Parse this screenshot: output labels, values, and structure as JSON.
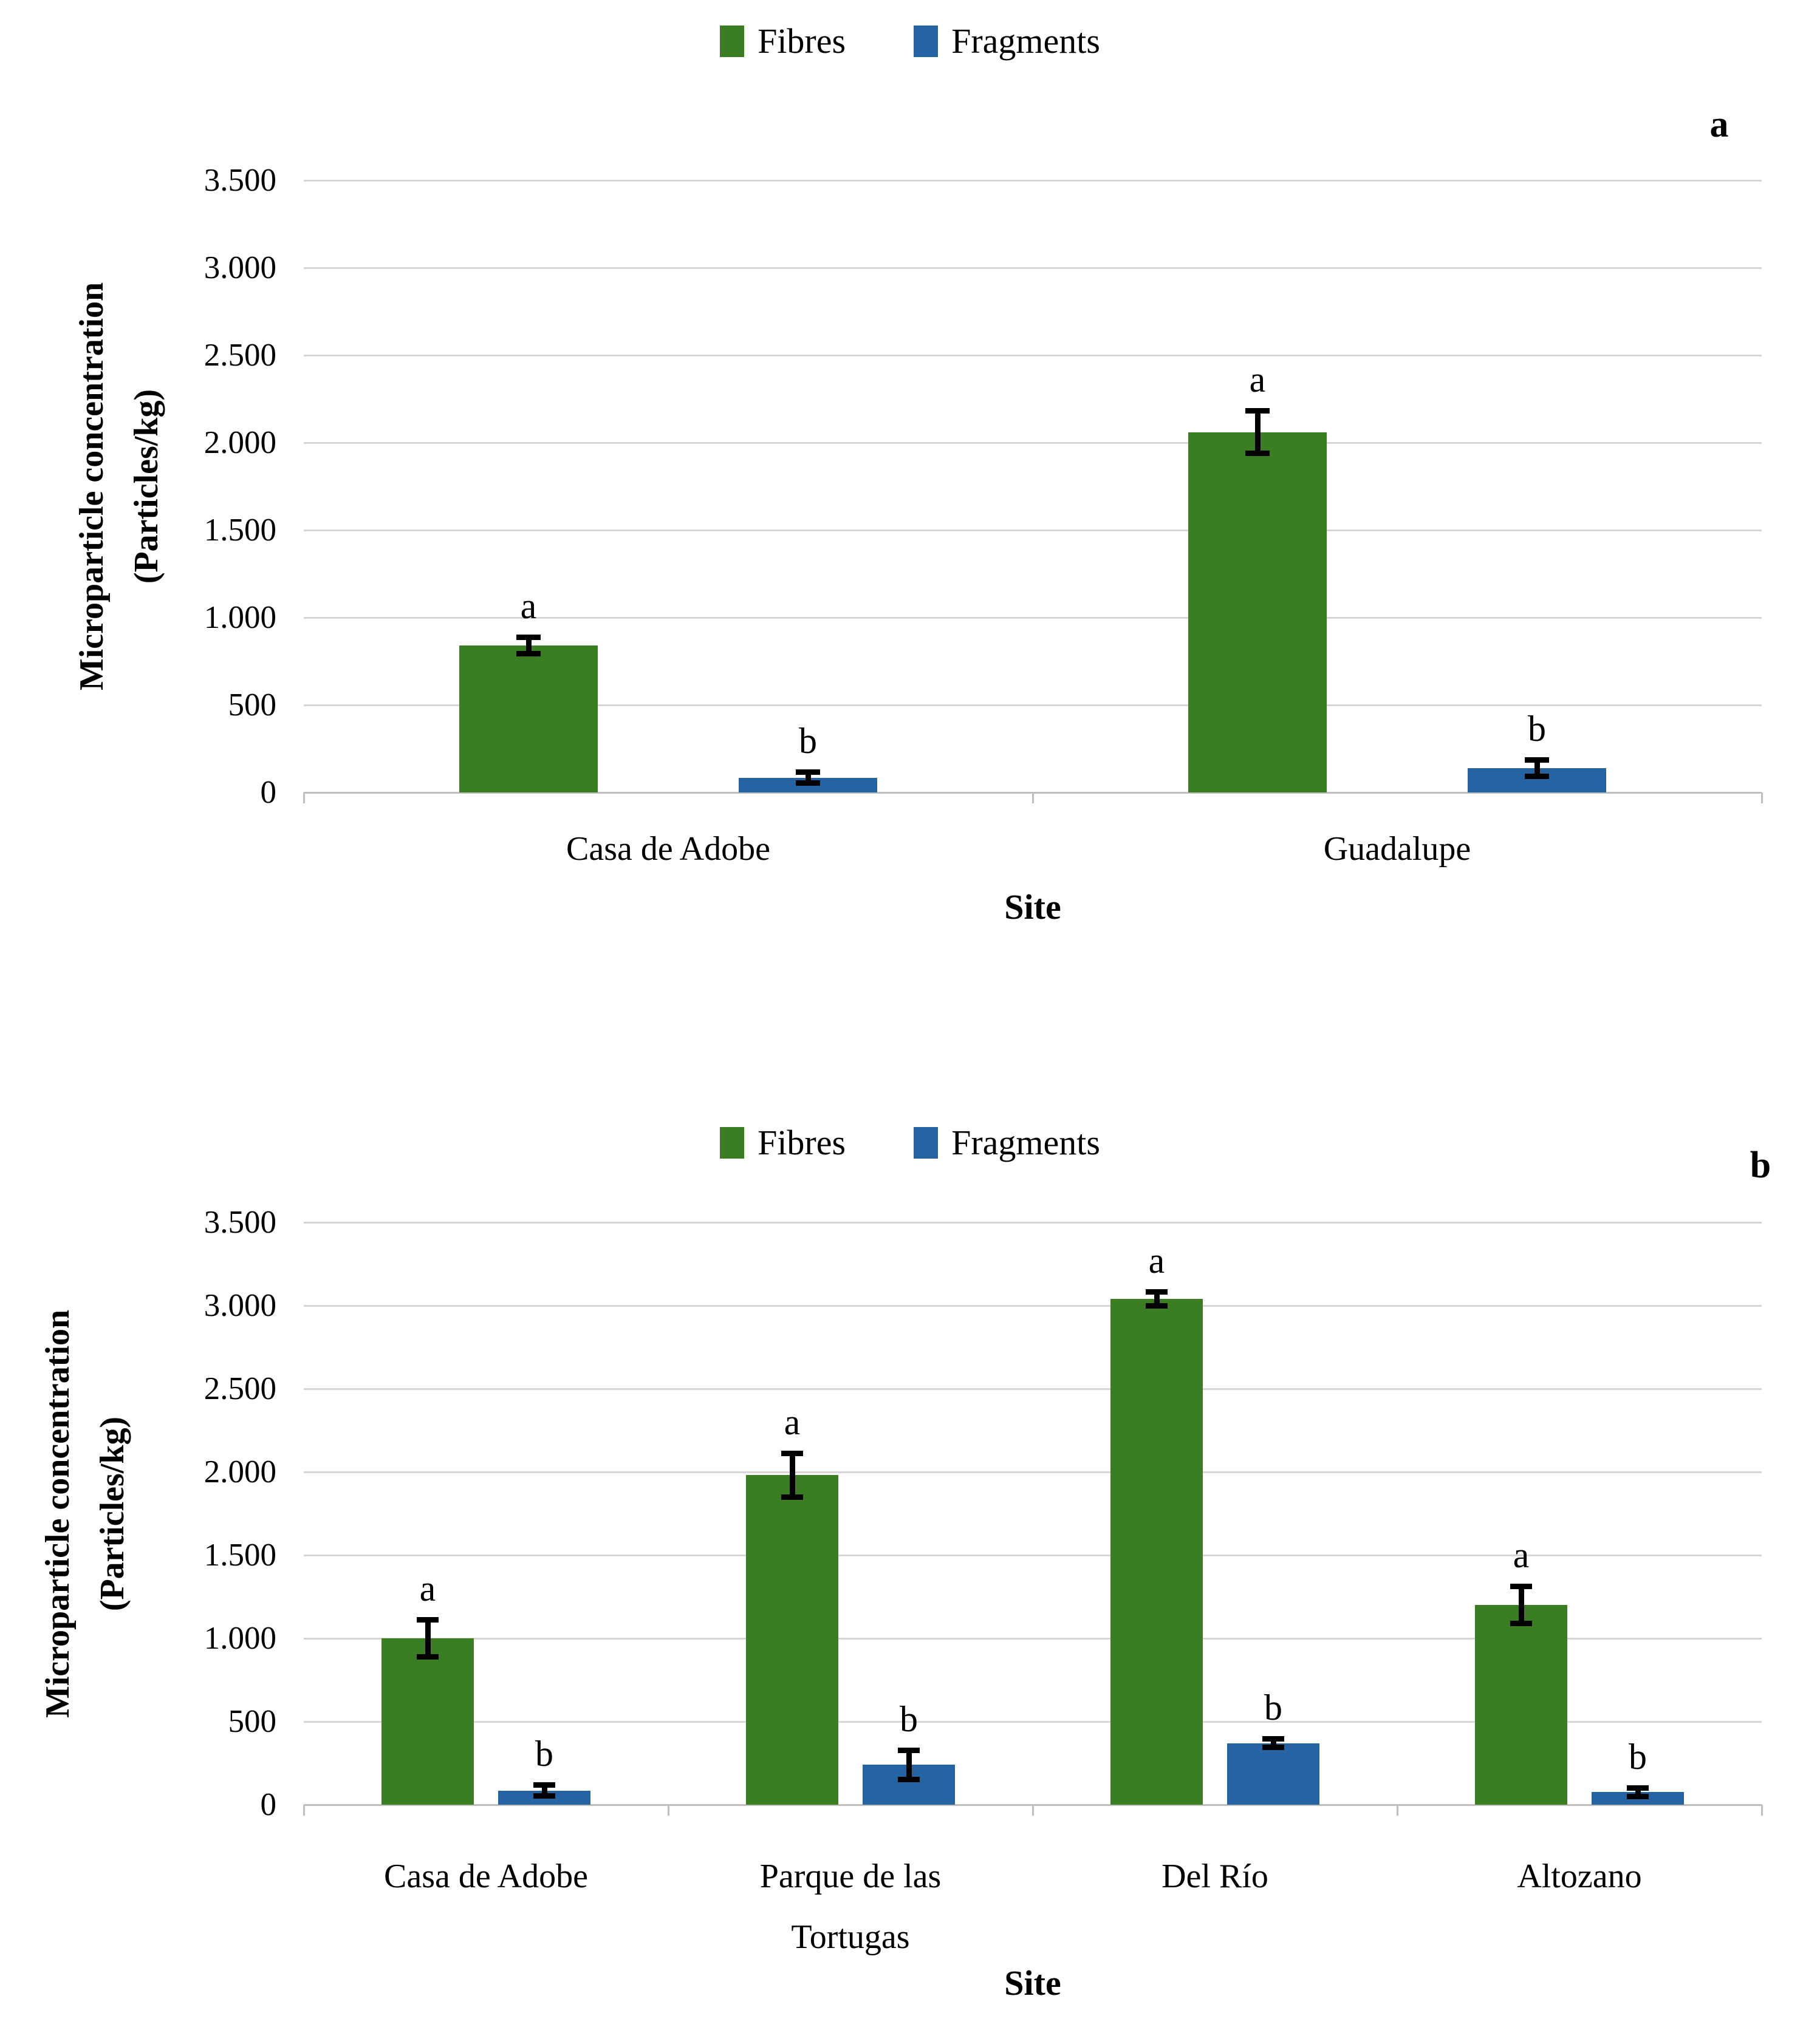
{
  "figure": {
    "description_visible_text_only": "Two stacked bar-chart panels comparing microparticle concentrations by site",
    "accent_colors": {
      "fibres_green": "#3B7D23",
      "fragments_blue": "#2563A3",
      "gridline_gray": "#D6D6D6",
      "axis_gray": "#BFBFBF"
    }
  },
  "chart_data": [
    {
      "type": "bar",
      "panel_label": "a",
      "title": "",
      "categories": [
        "Casa de Adobe",
        "Guadalupe"
      ],
      "series": [
        {
          "name": "Fibres",
          "color": "#3B7D23",
          "values": [
            840,
            2060
          ],
          "errors": [
            45,
            120
          ],
          "significance_letters": [
            "a",
            "a"
          ]
        },
        {
          "name": "Fragments",
          "color": "#2563A3",
          "values": [
            85,
            140
          ],
          "errors": [
            30,
            45
          ],
          "significance_letters": [
            "b",
            "b"
          ]
        }
      ],
      "xlabel": "Site",
      "ylabel_line1": "Microparticle concentration",
      "ylabel_line2": "(Particles/kg)",
      "ylim": [
        0,
        3500
      ],
      "ytick_step": 500,
      "ytick_labels_bottom_to_top": [
        "0",
        "500",
        "1.000",
        "1.500",
        "2.000",
        "2.500",
        "3.000",
        "3.500"
      ],
      "grid": "horizontal",
      "legend_entries": [
        "Fibres",
        "Fragments"
      ],
      "legend_position": "top-center",
      "error_bars": true
    },
    {
      "type": "bar",
      "panel_label": "b",
      "title": "",
      "categories": [
        "Casa de Adobe",
        "Parque de las Tortugas",
        "Del Río",
        "Altozano"
      ],
      "series": [
        {
          "name": "Fibres",
          "color": "#3B7D23",
          "values": [
            1000,
            1980,
            3040,
            1200
          ],
          "errors": [
            110,
            130,
            40,
            110
          ],
          "significance_letters": [
            "a",
            "a",
            "a",
            "a"
          ]
        },
        {
          "name": "Fragments",
          "color": "#2563A3",
          "values": [
            85,
            240,
            370,
            75
          ],
          "errors": [
            30,
            85,
            25,
            25
          ],
          "significance_letters": [
            "b",
            "b",
            "b",
            "b"
          ]
        }
      ],
      "xlabel": "Site",
      "ylabel_line1": "Microparticle concentration",
      "ylabel_line2": "(Particles/kg)",
      "ylim": [
        0,
        3500
      ],
      "ytick_step": 500,
      "ytick_labels_bottom_to_top": [
        "0",
        "500",
        "1.000",
        "1.500",
        "2.000",
        "2.500",
        "3.000",
        "3.500"
      ],
      "grid": "horizontal",
      "legend_entries": [
        "Fibres",
        "Fragments"
      ],
      "legend_position": "top-center",
      "error_bars": true
    }
  ]
}
